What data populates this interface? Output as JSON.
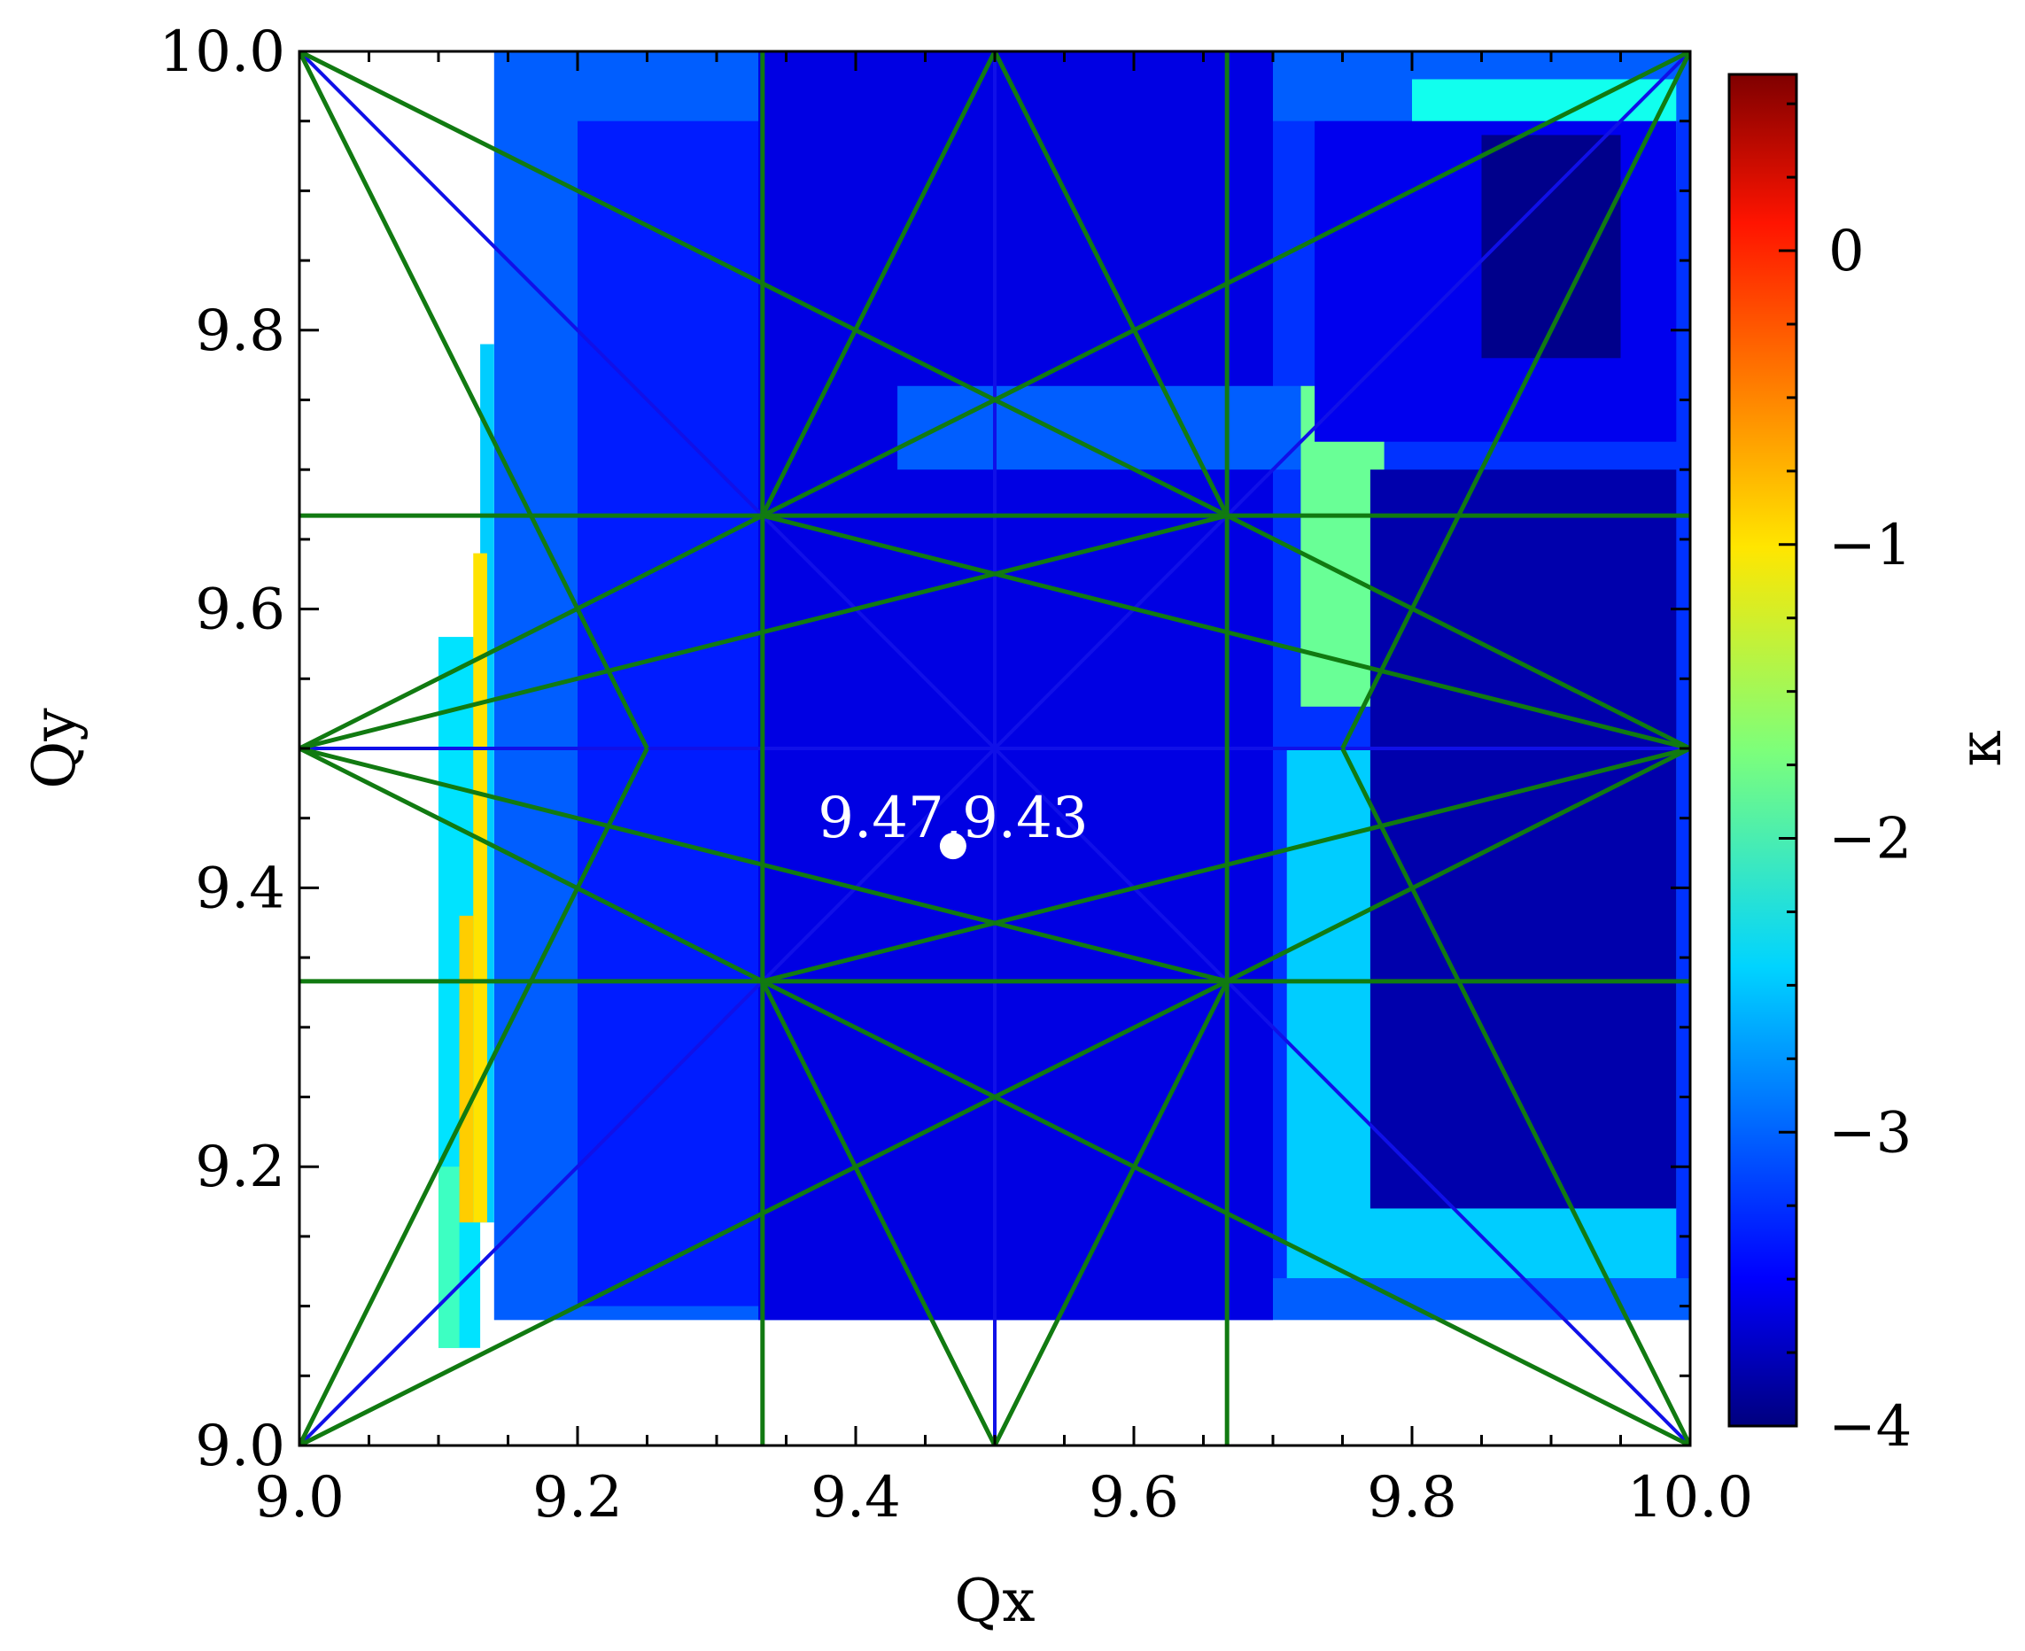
{
  "chart_data": {
    "type": "heatmap",
    "title": "",
    "xlabel": "Qx",
    "ylabel": "Qy",
    "xlim": [
      9.0,
      10.0
    ],
    "ylim": [
      9.0,
      10.0
    ],
    "xticks": [
      "9.0",
      "9.2",
      "9.4",
      "9.6",
      "9.8",
      "10.0"
    ],
    "yticks": [
      "9.0",
      "9.2",
      "9.4",
      "9.6",
      "9.8",
      "10.0"
    ],
    "colorbar": {
      "label": "κ",
      "colormap": "jet",
      "range": [
        -4.0,
        0.6
      ],
      "ticks": [
        {
          "value": 0,
          "label": "0"
        },
        {
          "value": -1,
          "label": "−1"
        },
        {
          "value": -2,
          "label": "−2"
        },
        {
          "value": -3,
          "label": "−3"
        },
        {
          "value": -4,
          "label": "−4"
        }
      ]
    },
    "heat_regions": [
      {
        "x": [
          9.14,
          10.0
        ],
        "y": [
          9.09,
          10.0
        ],
        "value": -3.0
      },
      {
        "x": [
          9.13,
          9.14
        ],
        "y": [
          9.16,
          9.79
        ],
        "value": -2.5
      },
      {
        "x": [
          9.1,
          9.13
        ],
        "y": [
          9.07,
          9.58
        ],
        "value": -2.4
      },
      {
        "x": [
          9.125,
          9.135
        ],
        "y": [
          9.16,
          9.64
        ],
        "value": -1.0
      },
      {
        "x": [
          9.115,
          9.125
        ],
        "y": [
          9.16,
          9.38
        ],
        "value": -0.9
      },
      {
        "x": [
          9.1,
          9.115
        ],
        "y": [
          9.07,
          9.2
        ],
        "value": -2.0
      },
      {
        "x": [
          9.2,
          9.55
        ],
        "y": [
          9.1,
          9.95
        ],
        "value": -3.3
      },
      {
        "x": [
          9.33,
          9.7
        ],
        "y": [
          9.09,
          10.0
        ],
        "value": -3.55
      },
      {
        "x": [
          9.7,
          10.0
        ],
        "y": [
          9.12,
          9.95
        ],
        "value": -3.2
      },
      {
        "x": [
          9.72,
          9.78
        ],
        "y": [
          9.53,
          9.76
        ],
        "value": -1.8
      },
      {
        "x": [
          9.8,
          9.99
        ],
        "y": [
          9.9,
          9.98
        ],
        "value": -2.2
      },
      {
        "x": [
          9.71,
          9.99
        ],
        "y": [
          9.12,
          9.5
        ],
        "value": -2.5
      },
      {
        "x": [
          9.77,
          9.99
        ],
        "y": [
          9.17,
          9.7
        ],
        "value": -3.8
      },
      {
        "x": [
          9.73,
          9.99
        ],
        "y": [
          9.72,
          9.95
        ],
        "value": -3.5
      },
      {
        "x": [
          9.85,
          9.95
        ],
        "y": [
          9.78,
          9.94
        ],
        "value": -3.95
      },
      {
        "x": [
          9.43,
          9.72
        ],
        "y": [
          9.7,
          9.76
        ],
        "value": -3.0
      }
    ],
    "resonance_lines_green": [
      [
        [
          9.0,
          10.0
        ],
        [
          9.5,
          9.75
        ]
      ],
      [
        [
          9.5,
          9.75
        ],
        [
          10.0,
          10.0
        ]
      ],
      [
        [
          9.0,
          9.0
        ],
        [
          9.5,
          9.25
        ]
      ],
      [
        [
          9.5,
          9.25
        ],
        [
          10.0,
          9.0
        ]
      ],
      [
        [
          9.0,
          10.0
        ],
        [
          9.25,
          9.5
        ]
      ],
      [
        [
          9.25,
          9.5
        ],
        [
          9.0,
          9.0
        ]
      ],
      [
        [
          10.0,
          10.0
        ],
        [
          9.75,
          9.5
        ]
      ],
      [
        [
          9.75,
          9.5
        ],
        [
          10.0,
          9.0
        ]
      ],
      [
        [
          9.333,
          9.667
        ],
        [
          9.5,
          10.0
        ]
      ],
      [
        [
          9.5,
          10.0
        ],
        [
          9.667,
          9.667
        ]
      ],
      [
        [
          9.333,
          9.333
        ],
        [
          9.5,
          9.0
        ]
      ],
      [
        [
          9.5,
          9.0
        ],
        [
          9.667,
          9.333
        ]
      ],
      [
        [
          9.333,
          9.333
        ],
        [
          9.0,
          9.5
        ]
      ],
      [
        [
          9.0,
          9.5
        ],
        [
          9.333,
          9.667
        ]
      ],
      [
        [
          9.667,
          9.333
        ],
        [
          10.0,
          9.5
        ]
      ],
      [
        [
          10.0,
          9.5
        ],
        [
          9.667,
          9.667
        ]
      ],
      [
        [
          9.333,
          9.667
        ],
        [
          10.0,
          9.5
        ]
      ],
      [
        [
          9.333,
          9.333
        ],
        [
          10.0,
          9.5
        ]
      ],
      [
        [
          9.667,
          9.667
        ],
        [
          9.0,
          9.5
        ]
      ],
      [
        [
          9.667,
          9.333
        ],
        [
          9.0,
          9.5
        ]
      ],
      [
        [
          9.333,
          9.667
        ],
        [
          9.5,
          9.75
        ]
      ],
      [
        [
          9.5,
          9.75
        ],
        [
          9.667,
          9.667
        ]
      ],
      [
        [
          9.333,
          9.333
        ],
        [
          9.5,
          9.25
        ]
      ],
      [
        [
          9.5,
          9.25
        ],
        [
          9.667,
          9.333
        ]
      ],
      [
        [
          9.333,
          9.0
        ],
        [
          9.333,
          10.0
        ]
      ],
      [
        [
          9.667,
          9.0
        ],
        [
          9.667,
          10.0
        ]
      ],
      [
        [
          9.0,
          9.333
        ],
        [
          10.0,
          9.333
        ]
      ],
      [
        [
          9.0,
          9.667
        ],
        [
          10.0,
          9.667
        ]
      ]
    ],
    "resonance_lines_blue": [
      [
        [
          9.0,
          10.0
        ],
        [
          10.0,
          9.0
        ]
      ],
      [
        [
          9.0,
          9.0
        ],
        [
          10.0,
          10.0
        ]
      ],
      [
        [
          9.5,
          9.0
        ],
        [
          9.5,
          10.0
        ]
      ],
      [
        [
          9.0,
          9.5
        ],
        [
          10.0,
          9.5
        ]
      ]
    ],
    "working_point": {
      "qx": 9.47,
      "qy": 9.43,
      "label": "9.47,9.43"
    }
  },
  "colors": {
    "green_line": "#117a11",
    "blue_line": "#1010e8",
    "marker": "#ffffff"
  }
}
